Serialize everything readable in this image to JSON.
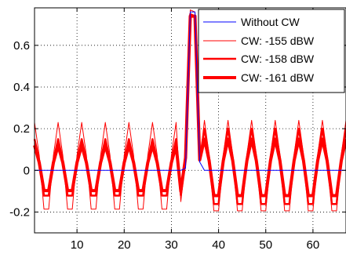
{
  "chart_data": {
    "type": "line",
    "title": "",
    "xlabel": "",
    "ylabel": "",
    "xlim": [
      1,
      67
    ],
    "ylim": [
      -0.3,
      0.78
    ],
    "xticks": [
      10,
      20,
      30,
      40,
      50,
      60
    ],
    "yticks": [
      -0.2,
      0,
      0.2,
      0.4,
      0.6
    ],
    "ytick_labels": [
      "-0.2",
      "0",
      "0.2",
      "0.4",
      "0.6"
    ],
    "grid": true,
    "legend_position": "top-right",
    "period": 5,
    "series": [
      {
        "name": "Without CW",
        "color": "#0000ff",
        "x": [
          1,
          32,
          33,
          34,
          35,
          36,
          37,
          67
        ],
        "y": [
          0,
          0,
          0.01,
          0.76,
          0.76,
          0.04,
          0,
          0
        ]
      },
      {
        "name": "CW: -155 dBW",
        "color": "#ff0000",
        "pre_amplitude": 0.23,
        "post_amplitude": 0.24,
        "phase_pre": 1,
        "phase_post": 2,
        "x_pulse": [
          32,
          33,
          34,
          35,
          36
        ],
        "y_pulse": [
          -0.15,
          0.05,
          0.77,
          0.76,
          0.04
        ]
      },
      {
        "name": "CW: -158 dBW",
        "color": "#ff0000",
        "pre_amplitude": 0.15,
        "post_amplitude": 0.2,
        "phase_pre": 1,
        "phase_post": 2,
        "x_pulse": [
          32,
          33,
          34,
          35,
          36
        ],
        "y_pulse": [
          -0.12,
          0.06,
          0.75,
          0.74,
          0.05
        ]
      },
      {
        "name": "CW: -161 dBW",
        "color": "#ff0000",
        "pre_amplitude": 0.12,
        "post_amplitude": 0.15,
        "phase_pre": 1,
        "phase_post": 2,
        "x_pulse": [
          32,
          33,
          34,
          35,
          36
        ],
        "y_pulse": [
          -0.1,
          0.06,
          0.74,
          0.74,
          0.05
        ]
      }
    ]
  }
}
